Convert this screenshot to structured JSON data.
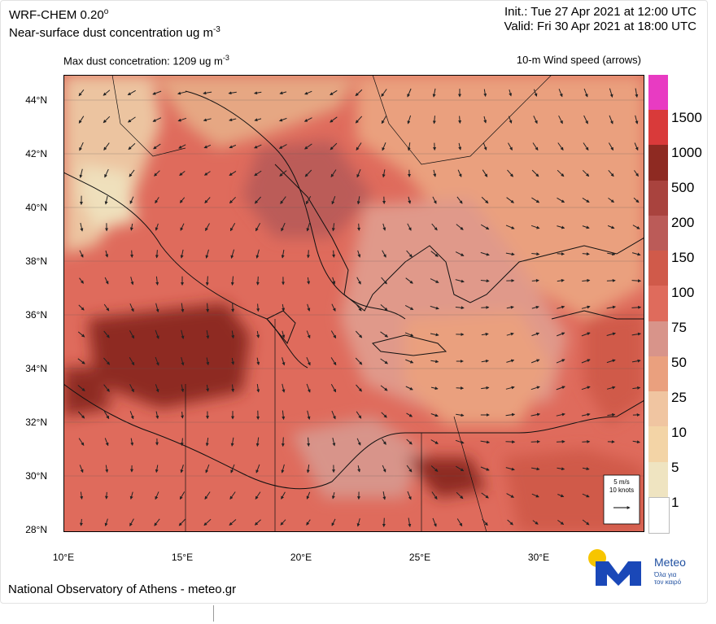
{
  "header": {
    "model": "WRF-CHEM 0.20",
    "model_degree": "o",
    "product": "Near-surface dust concentration ug m",
    "product_sup": "-3",
    "init": "Init.:  Tue 27 Apr 2021 at 12:00 UTC",
    "valid": "Valid: Fri 30 Apr 2021 at 18:00 UTC"
  },
  "subheader": {
    "max_label": "Max dust concetration: 1209 ug m",
    "max_sup": "-3",
    "wind_label": "10-m Wind speed (arrows)"
  },
  "map": {
    "lat_ticks": [
      "44°N",
      "42°N",
      "40°N",
      "38°N",
      "36°N",
      "34°N",
      "32°N",
      "30°N",
      "28°N"
    ],
    "lon_ticks": [
      "10°E",
      "15°E",
      "20°E",
      "25°E",
      "30°E"
    ],
    "wind_key": {
      "speed": "5 m/s",
      "knots": "10 knots"
    }
  },
  "colorbar": {
    "levels": [
      "1500",
      "1000",
      "500",
      "200",
      "150",
      "100",
      "75",
      "50",
      "25",
      "10",
      "5",
      "1"
    ],
    "colors": [
      "#e83bc2",
      "#d93a3a",
      "#8e2a22",
      "#a9433e",
      "#bb5b58",
      "#d05a4a",
      "#df6b5c",
      "#d8948a",
      "#eaa07e",
      "#f0c5a1",
      "#f3d4a6",
      "#efe4c1",
      "#ffffff"
    ]
  },
  "footer": {
    "credit": "National Observatory of Athens - meteo.gr"
  },
  "logo": {
    "name": "Meteo",
    "tagline_1": "Όλα για",
    "tagline_2": "τον καιρό",
    "colors": {
      "sun": "#f7c500",
      "mark": "#1a48b8"
    }
  }
}
